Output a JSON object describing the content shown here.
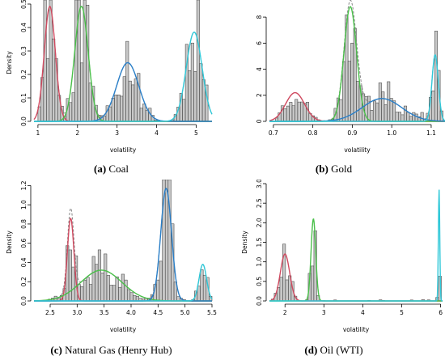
{
  "chart_data": [
    {
      "type": "histogram+density",
      "caption_letter": "(a)",
      "caption_name": "Coal",
      "xlabel": "volatility",
      "ylabel": "Density",
      "xlim": [
        0.9,
        5.4
      ],
      "ylim": [
        0,
        0.5
      ],
      "xticks": [
        "1",
        "2",
        "3",
        "4",
        "5"
      ],
      "xtick_values": [
        1,
        2,
        3,
        4,
        5
      ],
      "yticks": [
        "0.0",
        "0.1",
        "0.2",
        "0.3",
        "0.4",
        "0.5"
      ],
      "ytick_values": [
        0,
        0.1,
        0.2,
        0.3,
        0.4,
        0.5
      ],
      "hist_range": [
        1.0,
        5.3
      ],
      "hist_seed": 11,
      "components": [
        {
          "color": "#d04a60",
          "mean": 1.3,
          "sd": 0.14,
          "peak": 0.49
        },
        {
          "color": "#4ac04a",
          "mean": 2.1,
          "sd": 0.17,
          "peak": 0.49
        },
        {
          "color": "#2a7fc8",
          "mean": 3.27,
          "sd": 0.28,
          "peak": 0.25
        },
        {
          "color": "#30c8d8",
          "mean": 4.95,
          "sd": 0.2,
          "peak": 0.38
        }
      ],
      "gray_dashed": true
    },
    {
      "type": "histogram+density",
      "caption_letter": "(b)",
      "caption_name": "Gold",
      "xlabel": "volatility",
      "ylabel": "",
      "xlim": [
        0.69,
        1.135
      ],
      "ylim": [
        0,
        9
      ],
      "xticks": [
        "0.7",
        "0.8",
        "0.9",
        "1.0",
        "1.1"
      ],
      "xtick_values": [
        0.7,
        0.8,
        0.9,
        1.0,
        1.1
      ],
      "yticks": [
        "0",
        "2",
        "4",
        "6",
        "8"
      ],
      "ytick_values": [
        0,
        2,
        4,
        6,
        8
      ],
      "hist_range": [
        0.705,
        1.13
      ],
      "hist_seed": 23,
      "components": [
        {
          "color": "#d04a60",
          "mean": 0.755,
          "sd": 0.024,
          "peak": 2.2
        },
        {
          "color": "#4ac04a",
          "mean": 0.895,
          "sd": 0.016,
          "peak": 8.8
        },
        {
          "color": "#2a7fc8",
          "mean": 0.975,
          "sd": 0.05,
          "peak": 1.75
        },
        {
          "color": "#30c8d8",
          "mean": 1.11,
          "sd": 0.008,
          "peak": 5.1
        }
      ],
      "gray_dashed": true
    },
    {
      "type": "histogram+density",
      "caption_letter": "(c)",
      "caption_name": "Natural Gas (Henry Hub)",
      "xlabel": "volatility",
      "ylabel": "Density",
      "xlim": [
        2.2,
        5.5
      ],
      "ylim": [
        0,
        1.22
      ],
      "xticks": [
        "2.5",
        "3.0",
        "3.5",
        "4.0",
        "4.5",
        "5.0",
        "5.5"
      ],
      "xtick_values": [
        2.5,
        3.0,
        3.5,
        4.0,
        4.5,
        5.0,
        5.5
      ],
      "yticks": [
        "0.0",
        "0.2",
        "0.4",
        "0.6",
        "0.8",
        "1.0",
        "1.2"
      ],
      "ytick_values": [
        0,
        0.2,
        0.4,
        0.6,
        0.8,
        1.0,
        1.2
      ],
      "hist_range": [
        2.25,
        5.5
      ],
      "hist_seed": 37,
      "components": [
        {
          "color": "#d04a60",
          "mean": 2.88,
          "sd": 0.06,
          "peak": 0.86
        },
        {
          "color": "#4ac04a",
          "mean": 3.45,
          "sd": 0.38,
          "peak": 0.32
        },
        {
          "color": "#2a7fc8",
          "mean": 4.65,
          "sd": 0.1,
          "peak": 1.17
        },
        {
          "color": "#30c8d8",
          "mean": 5.33,
          "sd": 0.07,
          "peak": 0.38
        }
      ],
      "gray_dashed": true
    },
    {
      "type": "histogram+density",
      "caption_letter": "(d)",
      "caption_name": "Oil (WTI)",
      "xlabel": "volatility",
      "ylabel": "Density",
      "xlim": [
        1.6,
        6.05
      ],
      "ylim": [
        0,
        3.0
      ],
      "xticks": [
        "2",
        "3",
        "4",
        "5",
        "6"
      ],
      "xtick_values": [
        2,
        3,
        4,
        5,
        6
      ],
      "yticks": [
        "0.0",
        "0.5",
        "1.0",
        "1.5",
        "2.0",
        "2.5",
        "3.0"
      ],
      "ytick_values": [
        0,
        0.5,
        1.0,
        1.5,
        2.0,
        2.5,
        3.0
      ],
      "hist_range": [
        1.65,
        6.02
      ],
      "hist_seed": 53,
      "components": [
        {
          "color": "#d04a60",
          "mean": 2.0,
          "sd": 0.12,
          "peak": 1.2
        },
        {
          "color": "#4ac04a",
          "mean": 2.73,
          "sd": 0.06,
          "peak": 2.1
        },
        {
          "color": "#30c8d8",
          "mean": 5.96,
          "sd": 0.018,
          "peak": 2.85
        }
      ],
      "gray_dashed": false
    }
  ]
}
